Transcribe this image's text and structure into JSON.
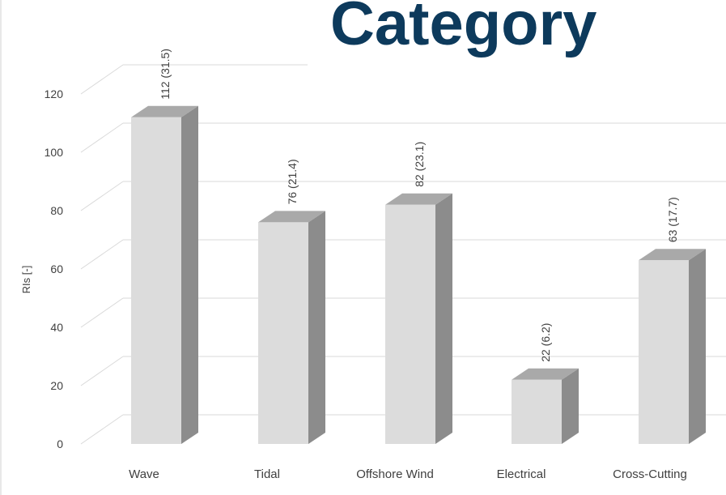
{
  "slide": {
    "title": "Category",
    "title_color": "#0d3a5c"
  },
  "chart_data": {
    "type": "bar",
    "style": "3d-column",
    "categories": [
      "Wave",
      "Tidal",
      "Offshore Wind",
      "Electrical",
      "Cross-Cutting"
    ],
    "series": [
      {
        "values": [
          112,
          76,
          82,
          22,
          63
        ],
        "percent": [
          31.5,
          21.4,
          23.1,
          6.2,
          17.7
        ],
        "data_labels": [
          "112 (31.5)",
          "76 (21.4)",
          "82 (23.1)",
          "22 (6.2)",
          "63 (17.7)"
        ]
      }
    ],
    "title": "",
    "xlabel": "",
    "ylabel": "RIs [-]",
    "ylim": [
      0,
      120
    ],
    "yticks": [
      0,
      20,
      40,
      60,
      80,
      100,
      120
    ],
    "grid": true,
    "legend": "none",
    "colors": {
      "bar_front": "#dcdcdc",
      "bar_side": "#8c8c8c",
      "bar_top": "#a9a9a9",
      "gridline": "#d9d9d9",
      "text": "#404040"
    }
  }
}
